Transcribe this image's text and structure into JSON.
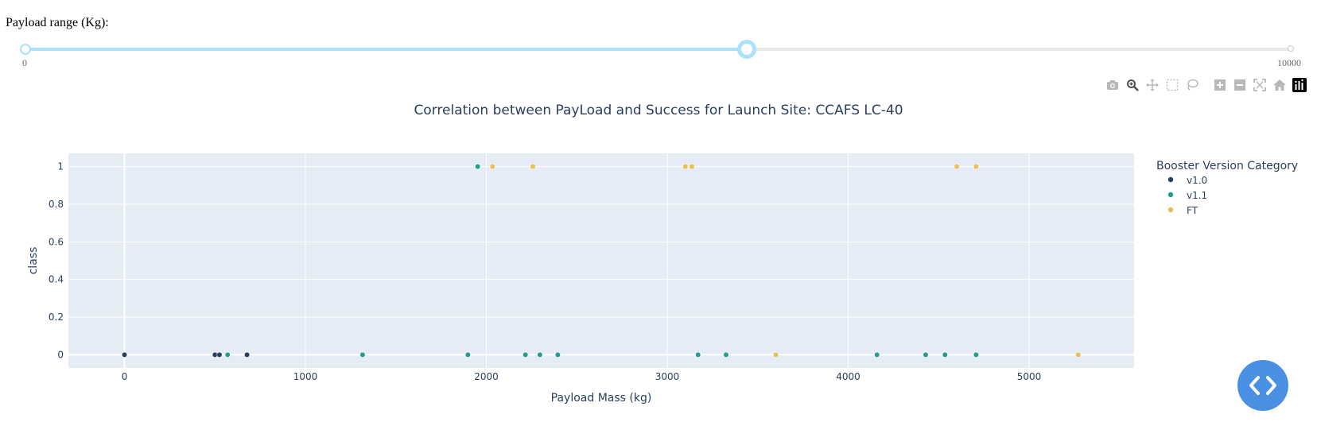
{
  "slider": {
    "label": "Payload range (Kg):",
    "min": 0,
    "max": 10000,
    "value_low": 0,
    "value_high": 5700,
    "min_label": "0",
    "max_label": "10000",
    "track_color": "#abe2fb"
  },
  "modebar": {
    "buttons": [
      "camera-icon",
      "zoom-icon",
      "pan-icon",
      "box-select-icon",
      "lasso-icon",
      "zoom-in-icon",
      "zoom-out-icon",
      "autoscale-icon",
      "reset-axes-icon",
      "plotly-logo-icon"
    ]
  },
  "chart_data": {
    "type": "scatter",
    "title": "Correlation between PayLoad and Success for Launch Site: CCAFS LC-40",
    "xlabel": "Payload Mass (kg)",
    "ylabel": "class",
    "xlim": [
      -310,
      5580
    ],
    "ylim": [
      -0.07,
      1.07
    ],
    "xticks": [
      0,
      1000,
      2000,
      3000,
      4000,
      5000
    ],
    "xtick_labels": [
      "0",
      "1000",
      "2000",
      "3000",
      "4000",
      "5000"
    ],
    "yticks": [
      0,
      0.2,
      0.4,
      0.6,
      0.8,
      1
    ],
    "ytick_labels": [
      "0",
      "0.2",
      "0.4",
      "0.6",
      "0.8",
      "1"
    ],
    "grid": true,
    "plot_bgcolor": "#e5ecf6",
    "legend": {
      "title": "Booster Version Category",
      "position": "right"
    },
    "series": [
      {
        "name": "v1.0",
        "color": "#2a3f5f",
        "points": [
          [
            0,
            0
          ],
          [
            500,
            0
          ],
          [
            525,
            0
          ],
          [
            677,
            0
          ]
        ]
      },
      {
        "name": "v1.1",
        "color": "#1f9e89",
        "points": [
          [
            570,
            0
          ],
          [
            1316,
            0
          ],
          [
            1898,
            0
          ],
          [
            1952,
            1
          ],
          [
            2216,
            0
          ],
          [
            2296,
            0
          ],
          [
            2395,
            0
          ],
          [
            3170,
            0
          ],
          [
            3325,
            0
          ],
          [
            4159,
            0
          ],
          [
            4428,
            0
          ],
          [
            4535,
            0
          ],
          [
            4707,
            0
          ]
        ]
      },
      {
        "name": "FT",
        "color": "#e7c04f",
        "points": [
          [
            2034,
            1
          ],
          [
            2257,
            1
          ],
          [
            3100,
            1
          ],
          [
            3136,
            1
          ],
          [
            3600,
            0
          ],
          [
            4600,
            1
          ],
          [
            4707,
            1
          ],
          [
            5271,
            0
          ]
        ]
      }
    ]
  }
}
